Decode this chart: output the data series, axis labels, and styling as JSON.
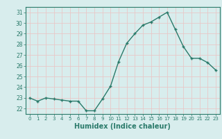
{
  "x": [
    0,
    1,
    2,
    3,
    4,
    5,
    6,
    7,
    8,
    9,
    10,
    11,
    12,
    13,
    14,
    15,
    16,
    17,
    18,
    19,
    20,
    21,
    22,
    23
  ],
  "y": [
    23.0,
    22.7,
    23.0,
    22.9,
    22.8,
    22.7,
    22.7,
    21.8,
    21.8,
    22.9,
    24.1,
    26.4,
    28.1,
    29.0,
    29.8,
    30.1,
    30.55,
    31.0,
    29.4,
    27.8,
    26.7,
    26.7,
    26.3,
    25.6
  ],
  "line_color": "#2a7a6a",
  "marker": "+",
  "marker_size": 3.5,
  "line_width": 1.0,
  "xlabel": "Humidex (Indice chaleur)",
  "xlabel_fontsize": 7,
  "ylim": [
    21.5,
    31.5
  ],
  "xlim": [
    -0.5,
    23.5
  ],
  "yticks": [
    22,
    23,
    24,
    25,
    26,
    27,
    28,
    29,
    30,
    31
  ],
  "xticks": [
    0,
    1,
    2,
    3,
    4,
    5,
    6,
    7,
    8,
    9,
    10,
    11,
    12,
    13,
    14,
    15,
    16,
    17,
    18,
    19,
    20,
    21,
    22,
    23
  ],
  "bg_color": "#d8eded",
  "grid_color": "#e8c8c8",
  "tick_color": "#2a7a6a",
  "axis_color": "#2a7a6a"
}
